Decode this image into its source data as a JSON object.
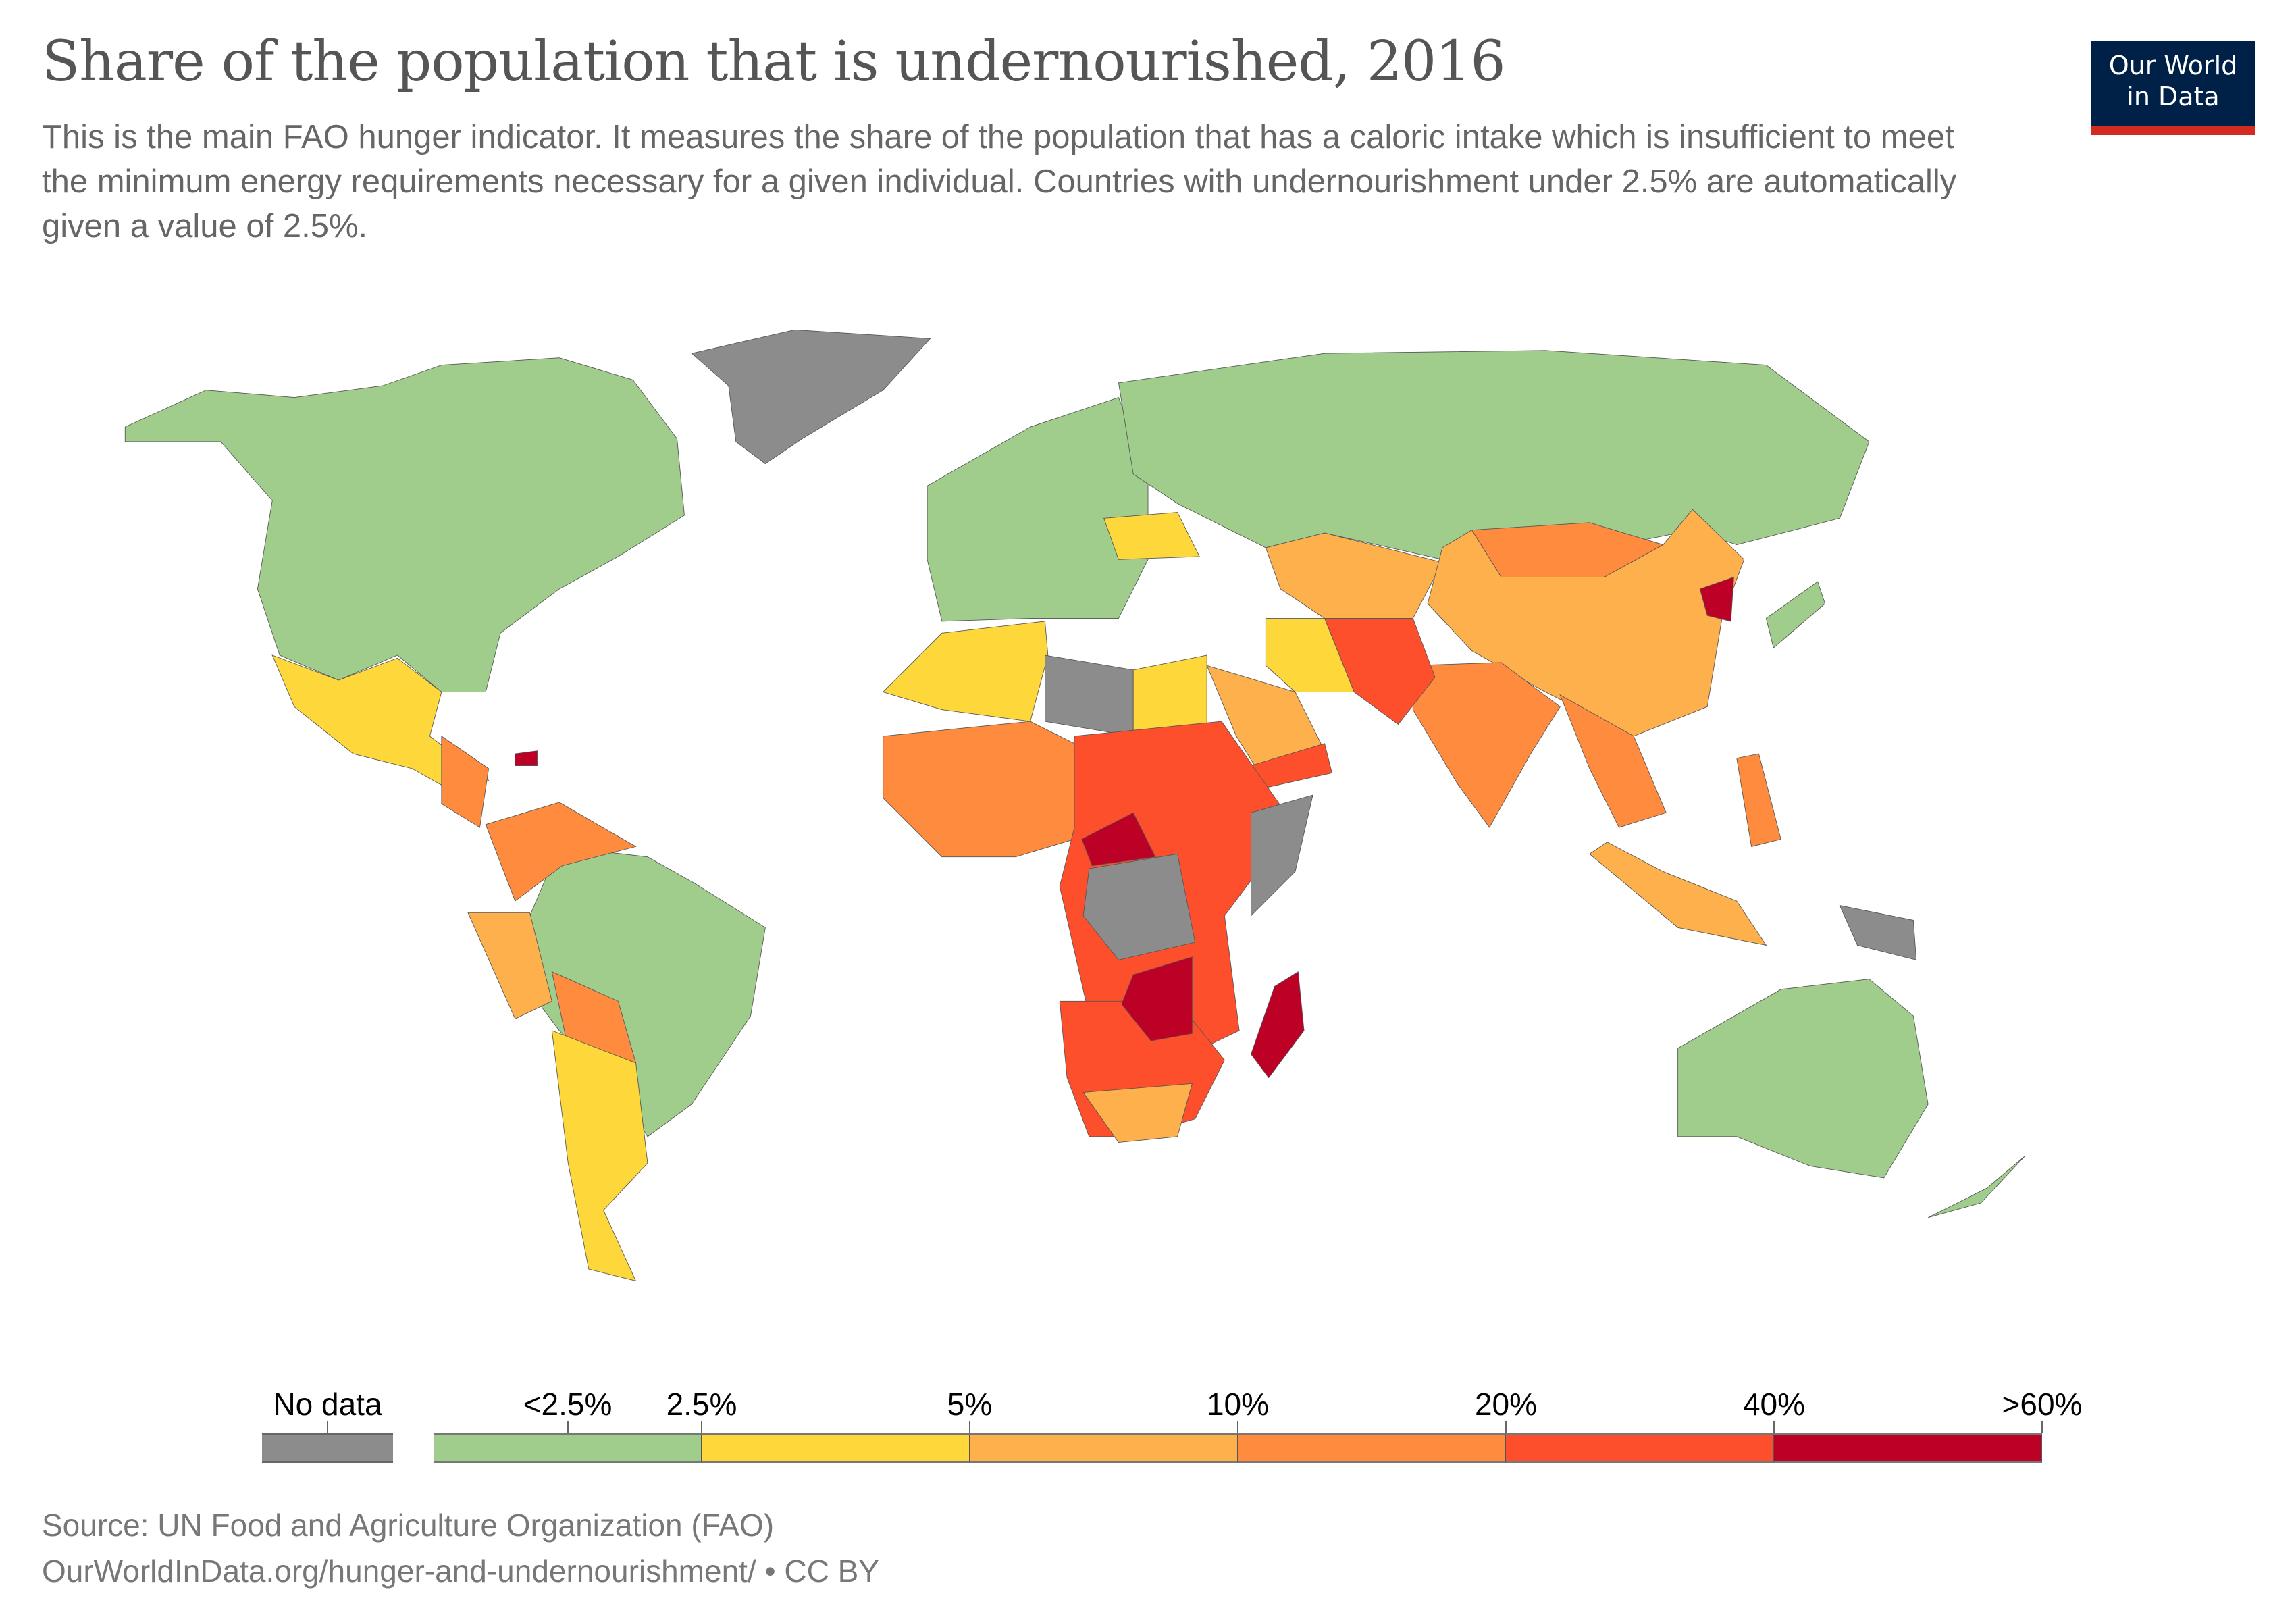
{
  "header": {
    "title": "Share of the population that is undernourished, 2016",
    "subtitle": "This is the main FAO hunger indicator. It measures the share of the population that has a caloric intake which is insufficient to meet the minimum energy requirements necessary for a given individual. Countries with undernourishment under 2.5% are automatically given a value of 2.5%."
  },
  "logo": {
    "line1": "Our World",
    "line2": "in Data",
    "bg": "#002147",
    "accent": "#d42b21"
  },
  "legend": {
    "no_data_label": "No data",
    "no_data_color": "#8c8c8c",
    "labels": [
      "<2.5%",
      "2.5%",
      "5%",
      "10%",
      "20%",
      "40%",
      ">60%"
    ],
    "bins": [
      {
        "range": "<2.5% – 2.5%",
        "color": "#a0cc8c"
      },
      {
        "range": "2.5% – 5%",
        "color": "#fed73b"
      },
      {
        "range": "5% – 10%",
        "color": "#fdb04b"
      },
      {
        "range": "10% – 20%",
        "color": "#fe8b3e"
      },
      {
        "range": "20% – 40%",
        "color": "#fd4f2c"
      },
      {
        "range": "40% – >60%",
        "color": "#bd0026"
      }
    ]
  },
  "chart_data": {
    "type": "choropleth",
    "year": "2016",
    "unit": "%",
    "bin_edges": [
      2.5,
      5,
      10,
      20,
      40,
      60
    ],
    "regions": [
      {
        "region": "North America",
        "bin": 0
      },
      {
        "region": "Greenland",
        "bin": null
      },
      {
        "region": "Mexico",
        "bin": 1
      },
      {
        "region": "Central America",
        "bin": 3
      },
      {
        "region": "Haiti",
        "bin": 5
      },
      {
        "region": "Brazil",
        "bin": 0
      },
      {
        "region": "Colombia / Venezuela",
        "bin": 3
      },
      {
        "region": "Peru / Ecuador",
        "bin": 2
      },
      {
        "region": "Bolivia / Paraguay",
        "bin": 3
      },
      {
        "region": "Argentina / Chile",
        "bin": 1
      },
      {
        "region": "Europe",
        "bin": 0
      },
      {
        "region": "Ukraine",
        "bin": 1
      },
      {
        "region": "Russia",
        "bin": 0
      },
      {
        "region": "Central Asia",
        "bin": 2
      },
      {
        "region": "Mongolia",
        "bin": 3
      },
      {
        "region": "China",
        "bin": 2
      },
      {
        "region": "North Korea",
        "bin": 5
      },
      {
        "region": "Japan / South Korea",
        "bin": 0
      },
      {
        "region": "India",
        "bin": 3
      },
      {
        "region": "Pakistan / Afghanistan",
        "bin": 4
      },
      {
        "region": "Iran",
        "bin": 1
      },
      {
        "region": "Saudi Arabia",
        "bin": 2
      },
      {
        "region": "Yemen",
        "bin": 4
      },
      {
        "region": "Algeria / Morocco",
        "bin": 1
      },
      {
        "region": "Libya",
        "bin": null
      },
      {
        "region": "Egypt",
        "bin": 1
      },
      {
        "region": "West Africa",
        "bin": 3
      },
      {
        "region": "Central & East Africa",
        "bin": 4
      },
      {
        "region": "Central African Republic",
        "bin": 5
      },
      {
        "region": "DR Congo",
        "bin": null
      },
      {
        "region": "Somalia",
        "bin": null
      },
      {
        "region": "Southern Africa",
        "bin": 4
      },
      {
        "region": "Zambia / Zimbabwe",
        "bin": 5
      },
      {
        "region": "South Africa",
        "bin": 2
      },
      {
        "region": "Madagascar",
        "bin": 5
      },
      {
        "region": "Southeast Asia mainland",
        "bin": 3
      },
      {
        "region": "Indonesia",
        "bin": 2
      },
      {
        "region": "Philippines",
        "bin": 3
      },
      {
        "region": "Papua New Guinea",
        "bin": null
      },
      {
        "region": "Australia",
        "bin": 0
      },
      {
        "region": "New Zealand",
        "bin": 0
      }
    ]
  },
  "footer": {
    "source": "Source: UN Food and Agriculture Organization (FAO)",
    "url": "OurWorldInData.org/hunger-and-undernourishment/",
    "license": " • CC BY"
  }
}
